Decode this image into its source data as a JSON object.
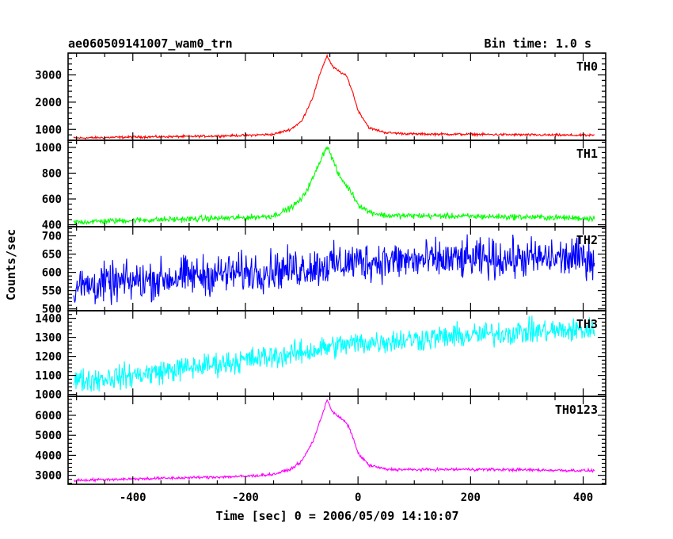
{
  "chart_data": {
    "type": "line",
    "title": "ae060509141007_wam0_trn",
    "subtitle": "Bin time: 1.0 s",
    "xlabel": "Time [sec] 0 = 2006/05/09 14:10:07",
    "ylabel": "Counts/sec",
    "xlim": [
      -515,
      440
    ],
    "x_ticks": [
      -400,
      -200,
      0,
      200,
      400
    ],
    "x_range_data": [
      -505,
      420
    ],
    "panels": [
      {
        "name": "TH0",
        "color": "#ff0000",
        "ylim": [
          600,
          3800
        ],
        "y_ticks": [
          1000,
          2000,
          3000
        ],
        "x": [
          -505,
          -400,
          -300,
          -200,
          -150,
          -120,
          -100,
          -80,
          -65,
          -55,
          -45,
          -35,
          -20,
          -10,
          0,
          20,
          50,
          100,
          200,
          300,
          420
        ],
        "y": [
          680,
          720,
          740,
          780,
          820,
          1000,
          1300,
          2200,
          3200,
          3700,
          3300,
          3150,
          2950,
          2400,
          1700,
          1050,
          880,
          830,
          820,
          800,
          780
        ],
        "noise": 30
      },
      {
        "name": "TH1",
        "color": "#00ff00",
        "ylim": [
          385,
          1055
        ],
        "y_ticks": [
          400,
          600,
          800,
          1000
        ],
        "x": [
          -505,
          -400,
          -300,
          -200,
          -150,
          -120,
          -100,
          -80,
          -65,
          -55,
          -45,
          -35,
          -20,
          -10,
          0,
          20,
          50,
          100,
          200,
          300,
          420
        ],
        "y": [
          420,
          435,
          445,
          455,
          470,
          530,
          600,
          760,
          920,
          1010,
          910,
          790,
          700,
          640,
          560,
          500,
          470,
          470,
          465,
          460,
          450
        ],
        "noise": 16
      },
      {
        "name": "TH2",
        "color": "#0000ff",
        "ylim": [
          495,
          725
        ],
        "y_ticks": [
          500,
          550,
          600,
          650,
          700
        ],
        "x": [
          -505,
          -400,
          -300,
          -200,
          -100,
          -50,
          0,
          100,
          200,
          300,
          420
        ],
        "y": [
          560,
          575,
          590,
          600,
          612,
          620,
          630,
          632,
          635,
          638,
          640
        ],
        "noise": 38
      },
      {
        "name": "TH3",
        "color": "#00ffff",
        "ylim": [
          990,
          1440
        ],
        "y_ticks": [
          1000,
          1100,
          1200,
          1300,
          1400
        ],
        "x": [
          -505,
          -400,
          -300,
          -200,
          -100,
          -50,
          0,
          100,
          200,
          300,
          420
        ],
        "y": [
          1070,
          1100,
          1140,
          1180,
          1220,
          1250,
          1270,
          1290,
          1310,
          1330,
          1340
        ],
        "noise": 45
      },
      {
        "name": "TH0123",
        "color": "#ff00ff",
        "ylim": [
          2550,
          6950
        ],
        "y_ticks": [
          3000,
          4000,
          5000,
          6000
        ],
        "x": [
          -505,
          -400,
          -300,
          -200,
          -150,
          -120,
          -100,
          -80,
          -65,
          -55,
          -45,
          -35,
          -20,
          -10,
          0,
          20,
          50,
          100,
          200,
          300,
          420
        ],
        "y": [
          2750,
          2820,
          2880,
          2950,
          3050,
          3300,
          3700,
          4700,
          5900,
          6800,
          6150,
          5950,
          5600,
          5000,
          4100,
          3500,
          3300,
          3280,
          3300,
          3270,
          3230
        ],
        "noise": 50
      }
    ]
  }
}
